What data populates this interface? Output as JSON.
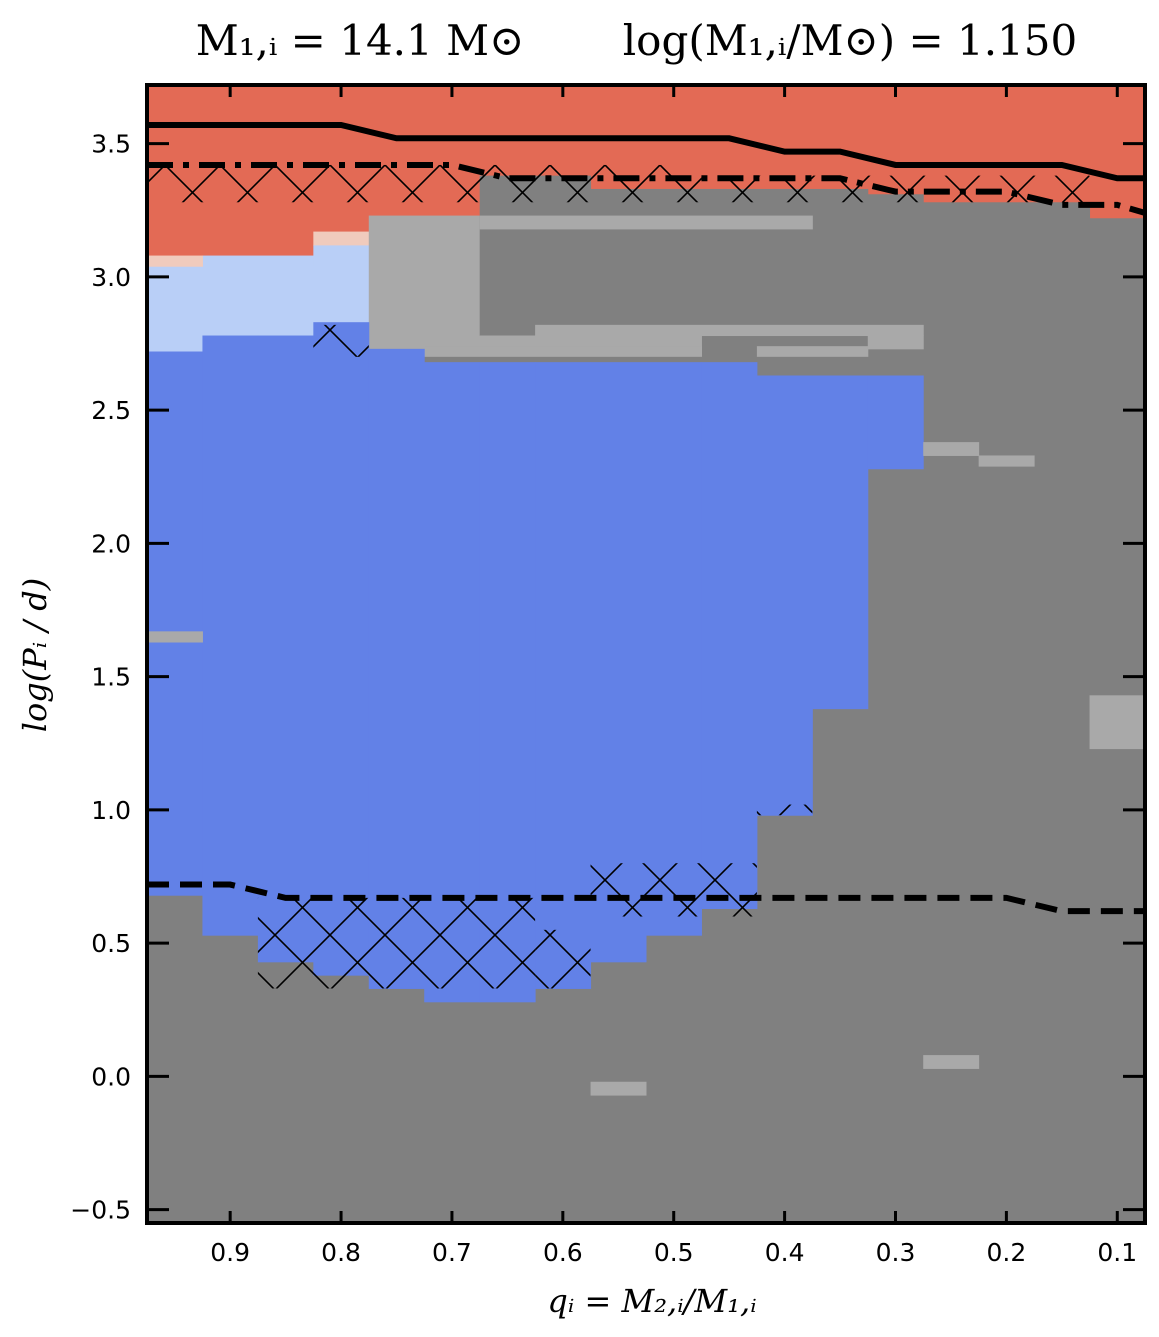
{
  "chart_data": {
    "type": "heatmap",
    "title_parts": {
      "left": "M₁,ᵢ = 14.1 M⊙",
      "right": "log(M₁,ᵢ/M⊙) = 1.150"
    },
    "xlabel": "qᵢ = M₂,ᵢ/M₁,ᵢ",
    "ylabel": "log(Pᵢ / d)",
    "xlim": [
      0.975,
      0.075
    ],
    "ylim": [
      -0.55,
      3.72
    ],
    "xticks": [
      0.9,
      0.8,
      0.7,
      0.6,
      0.5,
      0.4,
      0.3,
      0.2,
      0.1
    ],
    "xtick_labels": [
      "0.9",
      "0.8",
      "0.7",
      "0.6",
      "0.5",
      "0.4",
      "0.3",
      "0.2",
      "0.1"
    ],
    "yticks": [
      -0.5,
      0.0,
      0.5,
      1.0,
      1.5,
      2.0,
      2.5,
      3.0,
      3.5
    ],
    "ytick_labels": [
      "−0.5",
      "0.0",
      "0.5",
      "1.0",
      "1.5",
      "2.0",
      "2.5",
      "3.0",
      "3.5"
    ],
    "colors": {
      "red": "#e36a55",
      "blue": "#6281e7",
      "lightblue": "#b9cff7",
      "darkgray": "#808080",
      "lightgray": "#a9a9a9",
      "pink": "#f0cbbd"
    },
    "regions": [
      {
        "color": "red",
        "x": [
          0.975,
          0.075
        ],
        "y": [
          2.7,
          3.72
        ]
      },
      {
        "color": "lightblue",
        "x": [
          0.975,
          0.775
        ],
        "y": [
          2.7,
          3.04
        ]
      },
      {
        "color": "lightblue",
        "x": [
          0.925,
          0.825
        ],
        "y": [
          3.04,
          3.08
        ]
      },
      {
        "color": "lightblue",
        "x": [
          0.825,
          0.775
        ],
        "y": [
          3.04,
          3.12
        ]
      },
      {
        "color": "pink",
        "x": [
          0.975,
          0.925
        ],
        "y": [
          3.04,
          3.08
        ]
      },
      {
        "color": "pink",
        "x": [
          0.825,
          0.775
        ],
        "y": [
          3.12,
          3.17
        ]
      },
      {
        "color": "lightgray",
        "x": [
          0.775,
          0.675
        ],
        "y": [
          2.7,
          3.23
        ]
      },
      {
        "color": "darkgray",
        "x": [
          0.675,
          0.575
        ],
        "y": [
          2.78,
          3.38
        ]
      },
      {
        "color": "darkgray",
        "x": [
          0.575,
          0.325
        ],
        "y": [
          2.7,
          3.33
        ]
      },
      {
        "color": "darkgray",
        "x": [
          0.325,
          0.275
        ],
        "y": [
          2.7,
          3.31
        ]
      },
      {
        "color": "darkgray",
        "x": [
          0.275,
          0.125
        ],
        "y": [
          2.7,
          3.28
        ]
      },
      {
        "color": "darkgray",
        "x": [
          0.125,
          0.075
        ],
        "y": [
          2.7,
          3.22
        ]
      },
      {
        "color": "lightgray",
        "x": [
          0.675,
          0.375
        ],
        "y": [
          3.18,
          3.23
        ]
      },
      {
        "color": "lightgray",
        "x": [
          0.675,
          0.475
        ],
        "y": [
          2.7,
          2.78
        ]
      },
      {
        "color": "lightgray",
        "x": [
          0.625,
          0.275
        ],
        "y": [
          2.78,
          2.82
        ]
      },
      {
        "color": "lightgray",
        "x": [
          0.725,
          0.475
        ],
        "y": [
          2.68,
          2.74
        ]
      },
      {
        "color": "lightgray",
        "x": [
          0.425,
          0.325
        ],
        "y": [
          2.68,
          2.74
        ]
      },
      {
        "color": "lightgray",
        "x": [
          0.325,
          0.275
        ],
        "y": [
          2.73,
          2.78
        ]
      },
      {
        "color": "darkgray",
        "x": [
          0.975,
          0.075
        ],
        "y": [
          -0.55,
          2.7
        ]
      },
      {
        "color": "blue",
        "x": [
          0.975,
          0.925
        ],
        "y": [
          0.68,
          2.72
        ]
      },
      {
        "color": "blue",
        "x": [
          0.925,
          0.875
        ],
        "y": [
          0.53,
          2.78
        ]
      },
      {
        "color": "blue",
        "x": [
          0.875,
          0.825
        ],
        "y": [
          0.43,
          2.78
        ]
      },
      {
        "color": "blue",
        "x": [
          0.825,
          0.775
        ],
        "y": [
          0.38,
          2.83
        ]
      },
      {
        "color": "blue",
        "x": [
          0.775,
          0.725
        ],
        "y": [
          0.33,
          2.73
        ]
      },
      {
        "color": "blue",
        "x": [
          0.725,
          0.675
        ],
        "y": [
          0.28,
          2.68
        ]
      },
      {
        "color": "blue",
        "x": [
          0.675,
          0.625
        ],
        "y": [
          0.28,
          2.68
        ]
      },
      {
        "color": "blue",
        "x": [
          0.625,
          0.575
        ],
        "y": [
          0.33,
          2.68
        ]
      },
      {
        "color": "blue",
        "x": [
          0.575,
          0.525
        ],
        "y": [
          0.43,
          2.68
        ]
      },
      {
        "color": "blue",
        "x": [
          0.525,
          0.475
        ],
        "y": [
          0.53,
          2.68
        ]
      },
      {
        "color": "blue",
        "x": [
          0.475,
          0.425
        ],
        "y": [
          0.63,
          2.68
        ]
      },
      {
        "color": "blue",
        "x": [
          0.425,
          0.375
        ],
        "y": [
          0.98,
          2.63
        ]
      },
      {
        "color": "blue",
        "x": [
          0.375,
          0.325
        ],
        "y": [
          1.38,
          2.63
        ]
      },
      {
        "color": "blue",
        "x": [
          0.325,
          0.275
        ],
        "y": [
          2.28,
          2.63
        ]
      },
      {
        "color": "lightgray",
        "x": [
          0.975,
          0.925
        ],
        "y": [
          1.63,
          1.67
        ]
      },
      {
        "color": "lightgray",
        "x": [
          0.125,
          0.075
        ],
        "y": [
          1.23,
          1.43
        ]
      },
      {
        "color": "lightgray",
        "x": [
          0.275,
          0.225
        ],
        "y": [
          2.33,
          2.38
        ]
      },
      {
        "color": "lightgray",
        "x": [
          0.225,
          0.175
        ],
        "y": [
          2.29,
          2.33
        ]
      },
      {
        "color": "lightgray",
        "x": [
          0.575,
          0.525
        ],
        "y": [
          -0.07,
          -0.02
        ]
      },
      {
        "color": "lightgray",
        "x": [
          0.275,
          0.225
        ],
        "y": [
          0.03,
          0.08
        ]
      }
    ],
    "hatched_regions": [
      {
        "x": [
          0.975,
          0.475
        ],
        "y": [
          3.28,
          3.42
        ]
      },
      {
        "x": [
          0.475,
          0.125
        ],
        "y": [
          3.28,
          3.38
        ]
      },
      {
        "x": [
          0.825,
          0.775
        ],
        "y": [
          2.7,
          2.82
        ]
      },
      {
        "x": [
          0.875,
          0.625
        ],
        "y": [
          0.33,
          0.67
        ]
      },
      {
        "x": [
          0.625,
          0.575
        ],
        "y": [
          0.33,
          0.55
        ]
      },
      {
        "x": [
          0.575,
          0.425
        ],
        "y": [
          0.6,
          0.8
        ]
      },
      {
        "x": [
          0.425,
          0.375
        ],
        "y": [
          0.98,
          1.02
        ]
      }
    ],
    "series": [
      {
        "style": "solid",
        "x": [
          0.975,
          0.8,
          0.75,
          0.5,
          0.45,
          0.4,
          0.35,
          0.3,
          0.15,
          0.1,
          0.075
        ],
        "y": [
          3.57,
          3.57,
          3.52,
          3.52,
          3.52,
          3.47,
          3.47,
          3.42,
          3.42,
          3.37,
          3.37
        ]
      },
      {
        "style": "dashdot",
        "x": [
          0.975,
          0.7,
          0.65,
          0.35,
          0.3,
          0.2,
          0.15,
          0.1,
          0.075
        ],
        "y": [
          3.42,
          3.42,
          3.37,
          3.37,
          3.32,
          3.32,
          3.27,
          3.27,
          3.24
        ]
      },
      {
        "style": "dashed",
        "x": [
          0.975,
          0.9,
          0.85,
          0.2,
          0.15,
          0.075
        ],
        "y": [
          0.72,
          0.72,
          0.67,
          0.67,
          0.62,
          0.62
        ]
      }
    ]
  }
}
